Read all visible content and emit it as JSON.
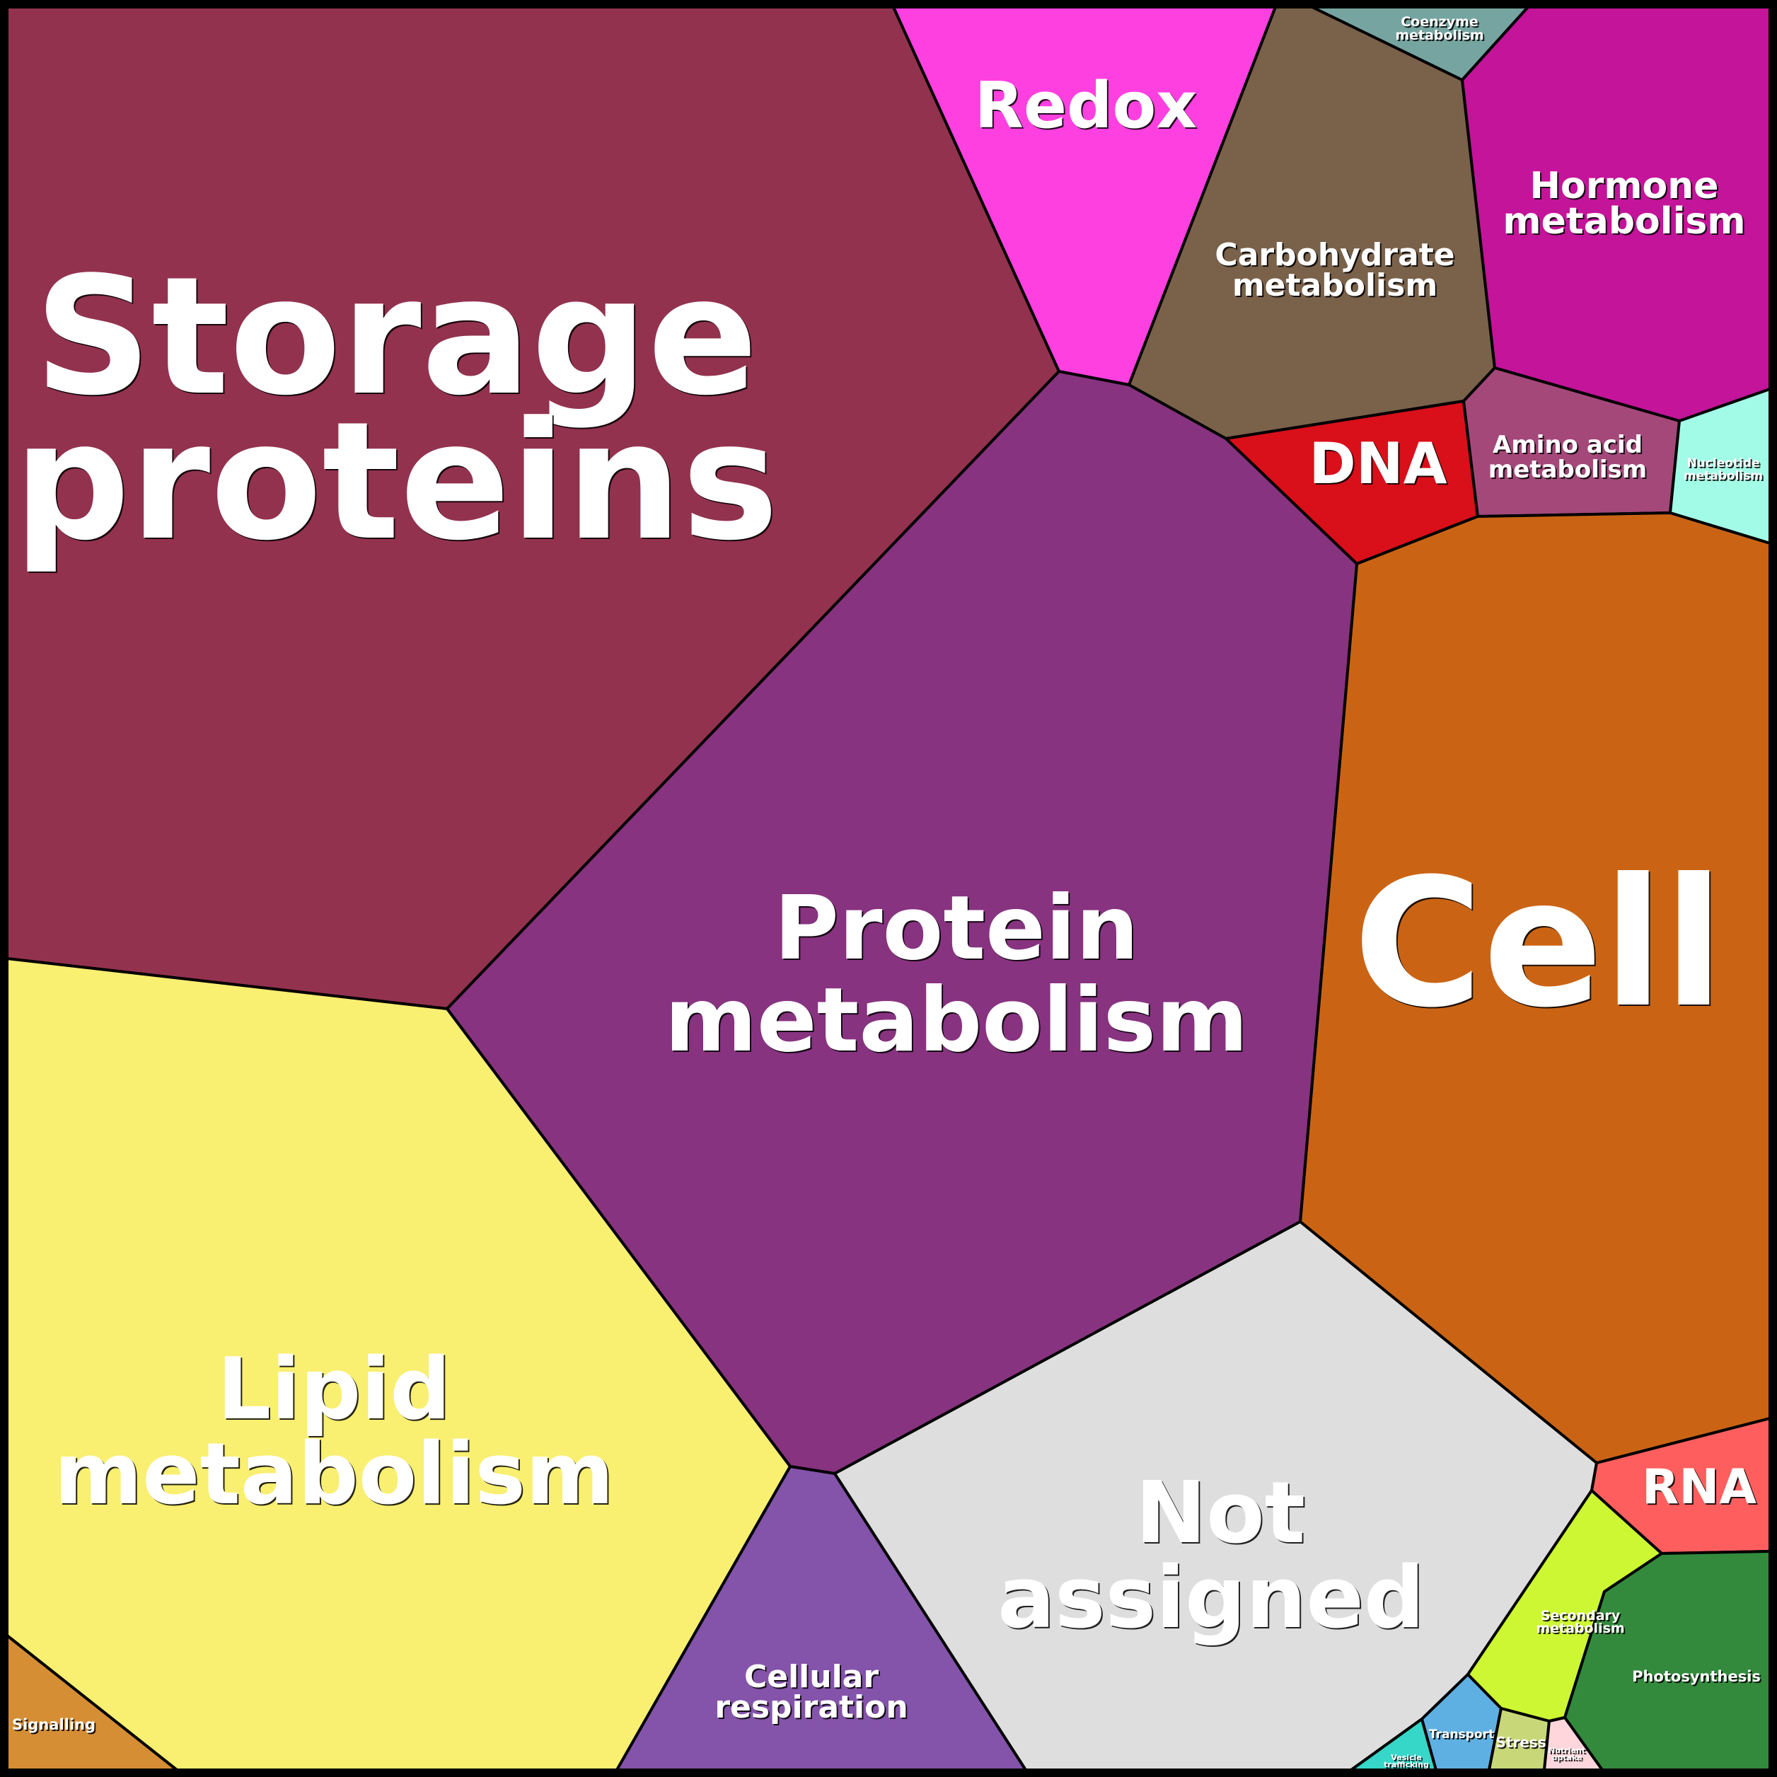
{
  "chart_data": {
    "type": "voronoi-treemap",
    "categories": [
      {
        "name": "Storage proteins",
        "color": "#93324f"
      },
      {
        "name": "Redox",
        "color": "#ff40e0"
      },
      {
        "name": "Carbohydrate metabolism",
        "color": "#7a614a"
      },
      {
        "name": "Coenzyme metabolism",
        "color": "#76a5a1"
      },
      {
        "name": "Hormone metabolism",
        "color": "#c3149a"
      },
      {
        "name": "DNA",
        "color": "#d90f1a"
      },
      {
        "name": "Amino acid metabolism",
        "color": "#a4487a"
      },
      {
        "name": "Nucleotide metabolism",
        "color": "#a2fbe6"
      },
      {
        "name": "Cell",
        "color": "#ca6414"
      },
      {
        "name": "Protein metabolism",
        "color": "#873380"
      },
      {
        "name": "Lipid metabolism",
        "color": "#f9ef71"
      },
      {
        "name": "Signalling",
        "color": "#d68e35"
      },
      {
        "name": "Cellular respiration",
        "color": "#8453aa"
      },
      {
        "name": "Not assigned",
        "color": "#dedede"
      },
      {
        "name": "RNA",
        "color": "#ff5e5e"
      },
      {
        "name": "Secondary metabolism",
        "color": "#cdf733"
      },
      {
        "name": "Photosynthesis",
        "color": "#338a3c"
      },
      {
        "name": "Vesicle trafficking",
        "color": "#36d6c8"
      },
      {
        "name": "Transport",
        "color": "#5fb0e2"
      },
      {
        "name": "Stress",
        "color": "#c8d878"
      },
      {
        "name": "Nutrient uptake",
        "color": "#ffd6db"
      }
    ]
  }
}
